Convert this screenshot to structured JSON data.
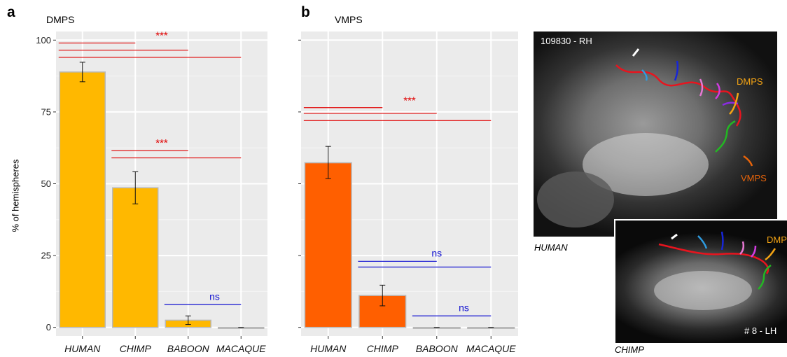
{
  "panels": {
    "a": {
      "letter": "a",
      "title": "DMPS"
    },
    "b": {
      "letter": "b",
      "title": "VMPS"
    }
  },
  "y_axis_label": "% of hemispheres",
  "colors": {
    "dmps_bar": "#FFB800",
    "vmps_bar": "#FF5F00",
    "significant": "#E00000",
    "not_significant": "#1010D0",
    "panel_bg": "#EBEBEB"
  },
  "chart_data": [
    {
      "type": "bar",
      "title": "DMPS",
      "categories": [
        "HUMAN",
        "CHIMP",
        "BABOON",
        "MACAQUE"
      ],
      "values": [
        88.9,
        48.6,
        2.5,
        0
      ],
      "error": [
        [
          85.5,
          92.3
        ],
        [
          43.0,
          54.2
        ],
        [
          1.0,
          4.0
        ],
        [
          0,
          0
        ]
      ],
      "ylabel": "% of hemispheres",
      "ylim": [
        -3,
        103
      ],
      "yticks": [
        0,
        25,
        50,
        75,
        100
      ],
      "grid": true,
      "comparisons": [
        {
          "label": "***",
          "level": "significant",
          "lines": [
            [
              0,
              1
            ],
            [
              0,
              2
            ],
            [
              0,
              3
            ]
          ]
        },
        {
          "label": "***",
          "level": "significant",
          "lines": [
            [
              1,
              2
            ],
            [
              1,
              3
            ]
          ]
        },
        {
          "label": "ns",
          "level": "not_significant",
          "lines": [
            [
              2,
              3
            ]
          ]
        }
      ]
    },
    {
      "type": "bar",
      "title": "VMPS",
      "categories": [
        "HUMAN",
        "CHIMP",
        "BABOON",
        "MACAQUE"
      ],
      "values": [
        57.3,
        11.1,
        0,
        0
      ],
      "error": [
        [
          51.8,
          63.0
        ],
        [
          7.5,
          14.7
        ],
        [
          0,
          0
        ],
        [
          0,
          0
        ]
      ],
      "ylabel": "% of hemispheres",
      "ylim": [
        -3,
        103
      ],
      "yticks": [
        0,
        25,
        50,
        75,
        100
      ],
      "grid": true,
      "comparisons": [
        {
          "label": "***",
          "level": "significant",
          "lines": [
            [
              0,
              1
            ],
            [
              0,
              2
            ],
            [
              0,
              3
            ]
          ]
        },
        {
          "label": "ns",
          "level": "not_significant",
          "lines": [
            [
              1,
              2
            ],
            [
              1,
              3
            ]
          ]
        },
        {
          "label": "ns",
          "level": "not_significant",
          "lines": [
            [
              2,
              3
            ]
          ]
        }
      ]
    }
  ],
  "mri": {
    "human": {
      "id": "109830 - RH",
      "caption": "HUMAN",
      "dmps_label": "DMPS",
      "vmps_label": "VMPS"
    },
    "chimp": {
      "id": "# 8 - LH",
      "caption": "CHIMP",
      "dmps_label": "DMPS"
    },
    "sulcus_colors": {
      "main": "#E8141E",
      "white": "#FFFFFF",
      "cyan": "#2E9BE0",
      "blue": "#1726D8",
      "pink": "#E778D4",
      "magenta": "#D23CE0",
      "violet": "#8A2BE2",
      "orange": "#F4A414",
      "green": "#22B822",
      "dark_orange": "#E8640A"
    }
  }
}
